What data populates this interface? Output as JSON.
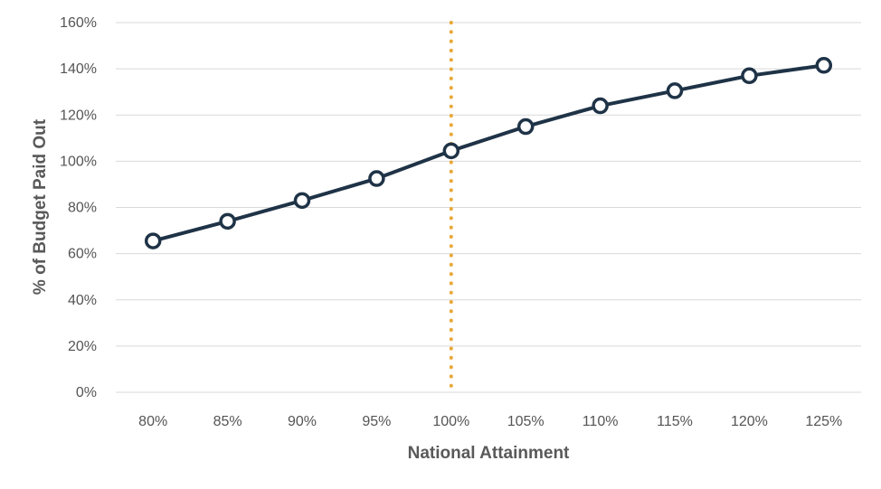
{
  "chart_data": {
    "type": "line",
    "xlabel": "National Attainment",
    "ylabel": "% of Budget Paid Out",
    "categories": [
      "80%",
      "85%",
      "90%",
      "95%",
      "100%",
      "105%",
      "110%",
      "115%",
      "120%",
      "125%"
    ],
    "yticks": [
      "0%",
      "20%",
      "40%",
      "60%",
      "80%",
      "100%",
      "120%",
      "140%",
      "160%"
    ],
    "ylim": [
      0,
      160
    ],
    "grid": true,
    "series": [
      {
        "values": [
          65.5,
          74,
          83,
          92.5,
          104.5,
          115,
          124,
          130.5,
          137,
          141.5
        ]
      }
    ],
    "reference_line": {
      "category": "100%"
    },
    "colors": {
      "line": "#1f3347",
      "marker_fill": "#ffffff",
      "reference": "#e8a838",
      "grid": "#d9d9d9",
      "text": "#555555"
    }
  }
}
